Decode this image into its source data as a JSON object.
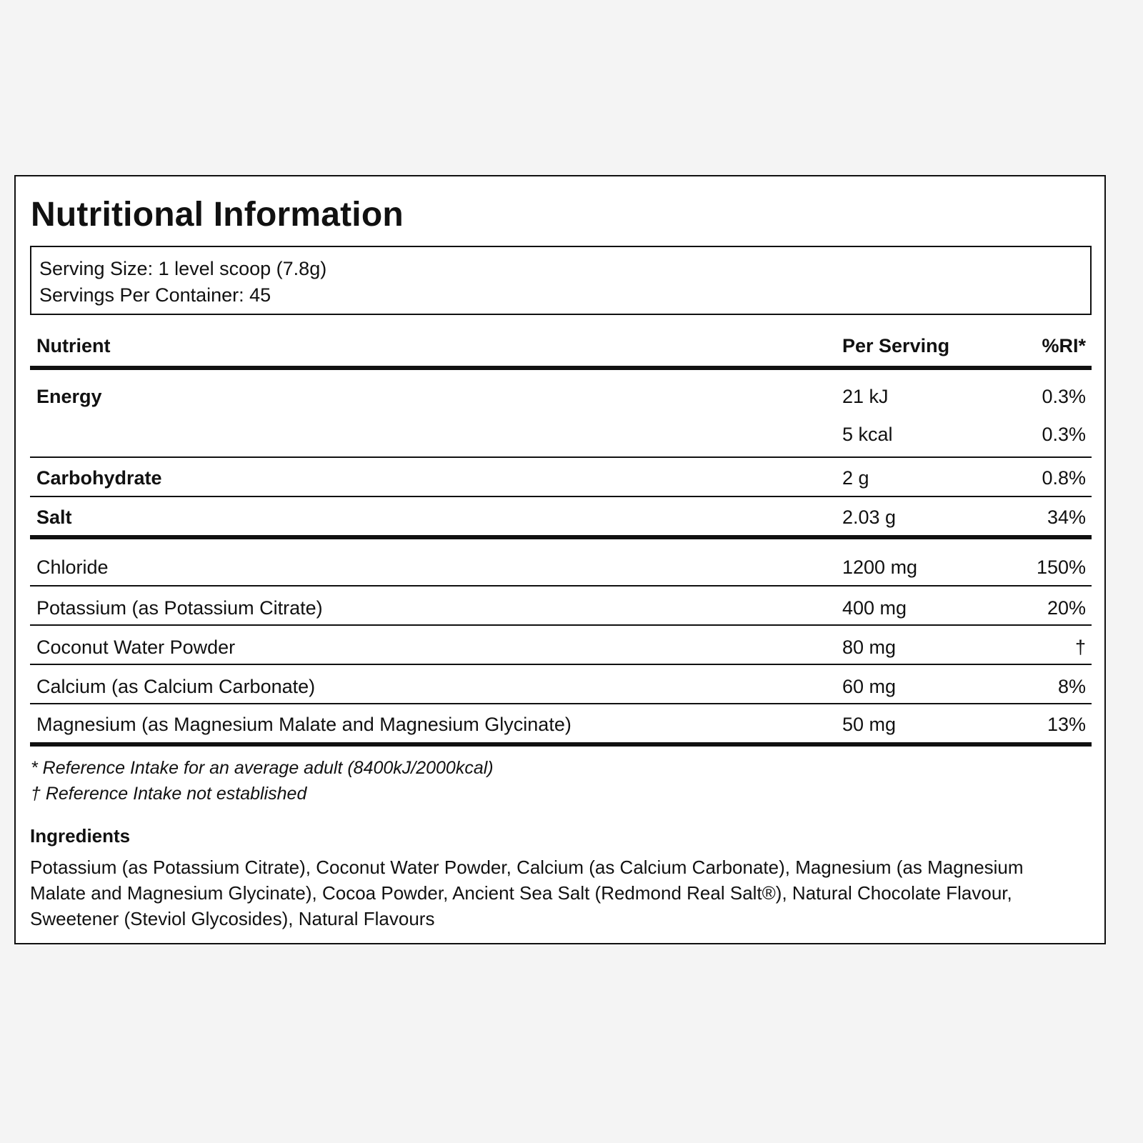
{
  "title": "Nutritional Information",
  "serving": {
    "size": "Serving Size: 1 level scoop (7.8g)",
    "per_container": "Servings Per Container: 45"
  },
  "table": {
    "headers": {
      "nutrient": "Nutrient",
      "per_serving": "Per Serving",
      "ri": "%RI*"
    },
    "energy": {
      "name": "Energy",
      "kj": "21 kJ",
      "kj_ri": "0.3%",
      "kcal": "5 kcal",
      "kcal_ri": "0.3%"
    },
    "carbohydrate": {
      "name": "Carbohydrate",
      "per": "2 g",
      "ri": "0.8%"
    },
    "salt": {
      "name": "Salt",
      "per": "2.03 g",
      "ri": "34%"
    },
    "minerals": [
      {
        "name": "Chloride",
        "per": "1200 mg",
        "ri": "150%"
      },
      {
        "name": "Potassium (as Potassium Citrate)",
        "per": "400 mg",
        "ri": "20%"
      },
      {
        "name": "Coconut Water Powder",
        "per": "80 mg",
        "ri": "†"
      },
      {
        "name": "Calcium (as Calcium Carbonate)",
        "per": "60 mg",
        "ri": "8%"
      },
      {
        "name": "Magnesium (as Magnesium Malate and Magnesium Glycinate)",
        "per": "50 mg",
        "ri": "13%"
      }
    ]
  },
  "footnotes": {
    "ri_note": "* Reference Intake for an average adult (8400kJ/2000kcal)",
    "not_established": "† Reference Intake not established"
  },
  "ingredients": {
    "title": "Ingredients",
    "text": "Potassium (as Potassium Citrate), Coconut Water Powder, Calcium (as Calcium Carbonate), Magnesium (as Magnesium Malate and Magnesium Glycinate), Cocoa Powder, Ancient Sea Salt (Redmond Real Salt®), Natural Chocolate Flavour, Sweetener (Steviol Glycosides), Natural Flavours"
  }
}
